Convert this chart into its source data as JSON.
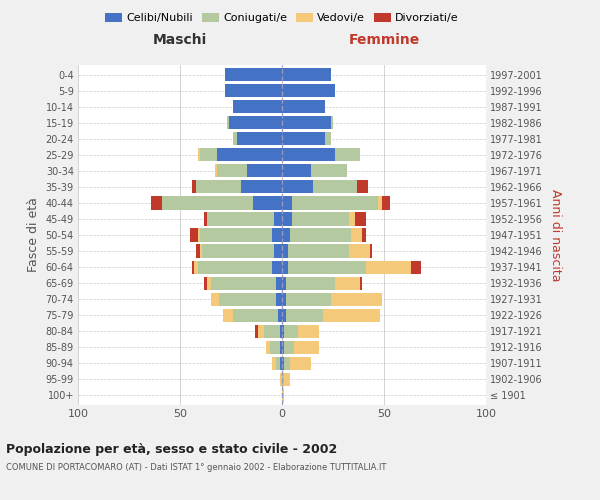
{
  "age_groups": [
    "100+",
    "95-99",
    "90-94",
    "85-89",
    "80-84",
    "75-79",
    "70-74",
    "65-69",
    "60-64",
    "55-59",
    "50-54",
    "45-49",
    "40-44",
    "35-39",
    "30-34",
    "25-29",
    "20-24",
    "15-19",
    "10-14",
    "5-9",
    "0-4"
  ],
  "birth_years": [
    "≤ 1901",
    "1902-1906",
    "1907-1911",
    "1912-1916",
    "1917-1921",
    "1922-1926",
    "1927-1931",
    "1932-1936",
    "1937-1941",
    "1942-1946",
    "1947-1951",
    "1952-1956",
    "1957-1961",
    "1962-1966",
    "1967-1971",
    "1972-1976",
    "1977-1981",
    "1982-1986",
    "1987-1991",
    "1992-1996",
    "1997-2001"
  ],
  "colors": {
    "celibi": "#4472c4",
    "coniugati": "#b5c9a0",
    "vedovi": "#f5c97a",
    "divorziati": "#c0392b"
  },
  "males": {
    "celibi": [
      0,
      0,
      1,
      1,
      1,
      2,
      3,
      3,
      5,
      4,
      5,
      4,
      14,
      20,
      17,
      32,
      22,
      26,
      24,
      28,
      28
    ],
    "coniugati": [
      0,
      0,
      2,
      5,
      8,
      22,
      28,
      32,
      36,
      35,
      35,
      33,
      45,
      22,
      15,
      8,
      2,
      1,
      0,
      0,
      0
    ],
    "vedovi": [
      0,
      1,
      2,
      2,
      3,
      5,
      4,
      2,
      2,
      1,
      1,
      0,
      0,
      0,
      1,
      1,
      0,
      0,
      0,
      0,
      0
    ],
    "divorziati": [
      0,
      0,
      0,
      0,
      1,
      0,
      0,
      1,
      1,
      2,
      4,
      1,
      5,
      2,
      0,
      0,
      0,
      0,
      0,
      0,
      0
    ]
  },
  "females": {
    "nubili": [
      0,
      0,
      1,
      1,
      1,
      2,
      2,
      2,
      3,
      3,
      4,
      5,
      5,
      15,
      14,
      26,
      21,
      24,
      21,
      26,
      24
    ],
    "coniugate": [
      0,
      1,
      3,
      5,
      7,
      18,
      22,
      24,
      38,
      30,
      30,
      28,
      42,
      22,
      18,
      12,
      3,
      1,
      0,
      0,
      0
    ],
    "vedove": [
      1,
      3,
      10,
      12,
      10,
      28,
      25,
      12,
      22,
      10,
      5,
      3,
      2,
      0,
      0,
      0,
      0,
      0,
      0,
      0,
      0
    ],
    "divorziate": [
      0,
      0,
      0,
      0,
      0,
      0,
      0,
      1,
      5,
      1,
      2,
      5,
      4,
      5,
      0,
      0,
      0,
      0,
      0,
      0,
      0
    ]
  },
  "xlim": 100,
  "title": "Popolazione per età, sesso e stato civile - 2002",
  "subtitle": "COMUNE DI PORTACOMARO (AT) - Dati ISTAT 1° gennaio 2002 - Elaborazione TUTTITALIA.IT",
  "ylabel_left": "Fasce di età",
  "ylabel_right": "Anni di nascita",
  "xlabel_left": "Maschi",
  "xlabel_right": "Femmine",
  "bg_color": "#f0f0f0",
  "plot_bg": "#ffffff",
  "grid_color": "#cccccc"
}
